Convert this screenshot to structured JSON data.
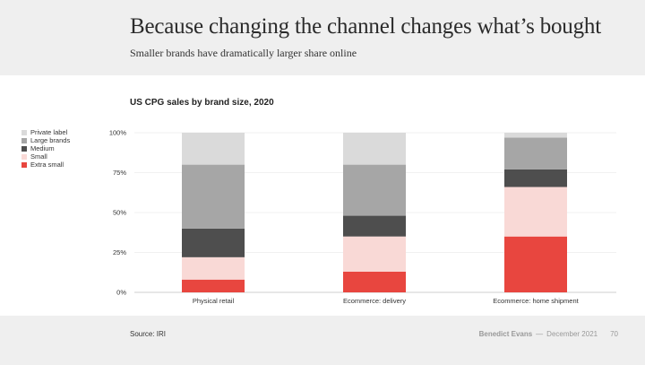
{
  "slide": {
    "title": "Because changing the channel changes what’s bought",
    "subtitle": "Smaller brands have dramatically larger share online",
    "source": "Source: IRI",
    "author": "Benedict Evans",
    "separator": "—",
    "date": "December 2021",
    "page": "70"
  },
  "chart_data": {
    "type": "bar",
    "stacked": true,
    "title": "US CPG sales by brand size, 2020",
    "xlabel": "",
    "ylabel": "",
    "ylim": [
      0,
      1
    ],
    "yticks": [
      {
        "value": 0,
        "label": "0%"
      },
      {
        "value": 0.25,
        "label": "25%"
      },
      {
        "value": 0.5,
        "label": "50%"
      },
      {
        "value": 0.75,
        "label": "75%"
      },
      {
        "value": 1,
        "label": "100%"
      }
    ],
    "grid": true,
    "legend_position": "left",
    "categories": [
      "Physical retail",
      "Ecommerce: delivery",
      "Ecommerce: home shipment"
    ],
    "series": [
      {
        "name": "Extra small",
        "color": "#e8463f",
        "values": [
          0.08,
          0.13,
          0.35
        ]
      },
      {
        "name": "Small",
        "color": "#f9d9d6",
        "values": [
          0.14,
          0.22,
          0.31
        ]
      },
      {
        "name": "Medium",
        "color": "#4e4e4e",
        "values": [
          0.18,
          0.13,
          0.11
        ]
      },
      {
        "name": "Large brands",
        "color": "#a6a6a6",
        "values": [
          0.4,
          0.32,
          0.2
        ]
      },
      {
        "name": "Private label",
        "color": "#dadada",
        "values": [
          0.2,
          0.2,
          0.03
        ]
      }
    ],
    "legend_order": [
      "Private label",
      "Large brands",
      "Medium",
      "Small",
      "Extra small"
    ]
  }
}
